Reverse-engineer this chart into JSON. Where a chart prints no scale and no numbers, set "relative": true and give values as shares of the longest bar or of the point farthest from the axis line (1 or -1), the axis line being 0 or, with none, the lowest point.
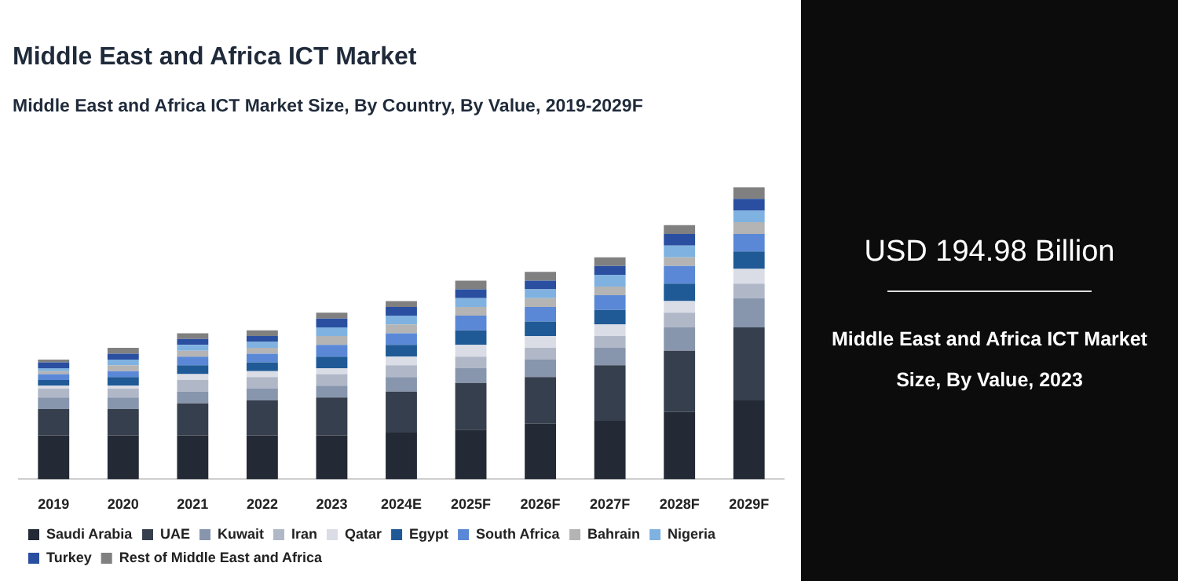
{
  "chart_data": {
    "type": "bar",
    "title": "Middle East and Africa ICT Market",
    "subtitle": "Middle East and Africa ICT Market Size, By Country, By Value, 2019-2029F",
    "stacked": true,
    "relative": true,
    "legend": "bottom",
    "categories": [
      "2019",
      "2020",
      "2021",
      "2022",
      "2023",
      "2024E",
      "2025F",
      "2026F",
      "2027F",
      "2028F",
      "2029F"
    ],
    "series": [
      {
        "name": "Saudi Arabia",
        "color": "#232a35",
        "values": [
          0.15,
          0.15,
          0.15,
          0.15,
          0.15,
          0.16,
          0.17,
          0.19,
          0.2,
          0.23,
          0.27
        ]
      },
      {
        "name": "UAE",
        "color": "#363f4d",
        "values": [
          0.09,
          0.09,
          0.11,
          0.12,
          0.13,
          0.14,
          0.16,
          0.16,
          0.19,
          0.21,
          0.25
        ]
      },
      {
        "name": "Kuwait",
        "color": "#8795ad",
        "values": [
          0.04,
          0.04,
          0.04,
          0.04,
          0.04,
          0.05,
          0.05,
          0.06,
          0.06,
          0.08,
          0.1
        ]
      },
      {
        "name": "Iran",
        "color": "#b0b8c8",
        "values": [
          0.03,
          0.03,
          0.04,
          0.04,
          0.04,
          0.04,
          0.04,
          0.04,
          0.04,
          0.05,
          0.05
        ]
      },
      {
        "name": "Qatar",
        "color": "#dadde6",
        "values": [
          0.01,
          0.01,
          0.02,
          0.02,
          0.02,
          0.03,
          0.04,
          0.04,
          0.04,
          0.04,
          0.05
        ]
      },
      {
        "name": "Egypt",
        "color": "#1f5a96",
        "values": [
          0.02,
          0.03,
          0.03,
          0.03,
          0.04,
          0.04,
          0.05,
          0.05,
          0.05,
          0.06,
          0.06
        ]
      },
      {
        "name": "South Africa",
        "color": "#5b88d6",
        "values": [
          0.02,
          0.02,
          0.03,
          0.03,
          0.04,
          0.04,
          0.05,
          0.05,
          0.05,
          0.06,
          0.06
        ]
      },
      {
        "name": "Bahrain",
        "color": "#b4b4b4",
        "values": [
          0.01,
          0.02,
          0.02,
          0.02,
          0.03,
          0.03,
          0.03,
          0.03,
          0.03,
          0.03,
          0.04
        ]
      },
      {
        "name": "Nigeria",
        "color": "#7fb2e0",
        "values": [
          0.01,
          0.02,
          0.02,
          0.02,
          0.03,
          0.03,
          0.03,
          0.03,
          0.04,
          0.04,
          0.04
        ]
      },
      {
        "name": "Turkey",
        "color": "#2a4fa0",
        "values": [
          0.02,
          0.02,
          0.02,
          0.02,
          0.03,
          0.03,
          0.03,
          0.03,
          0.03,
          0.04,
          0.04
        ]
      },
      {
        "name": "Rest of Middle East and Africa",
        "color": "#808080",
        "values": [
          0.01,
          0.02,
          0.02,
          0.02,
          0.02,
          0.02,
          0.03,
          0.03,
          0.03,
          0.03,
          0.04
        ]
      }
    ],
    "annotations": [
      "USD 194.98 Billion",
      "Middle East and Africa ICT Market Size, By Value, 2023"
    ]
  }
}
